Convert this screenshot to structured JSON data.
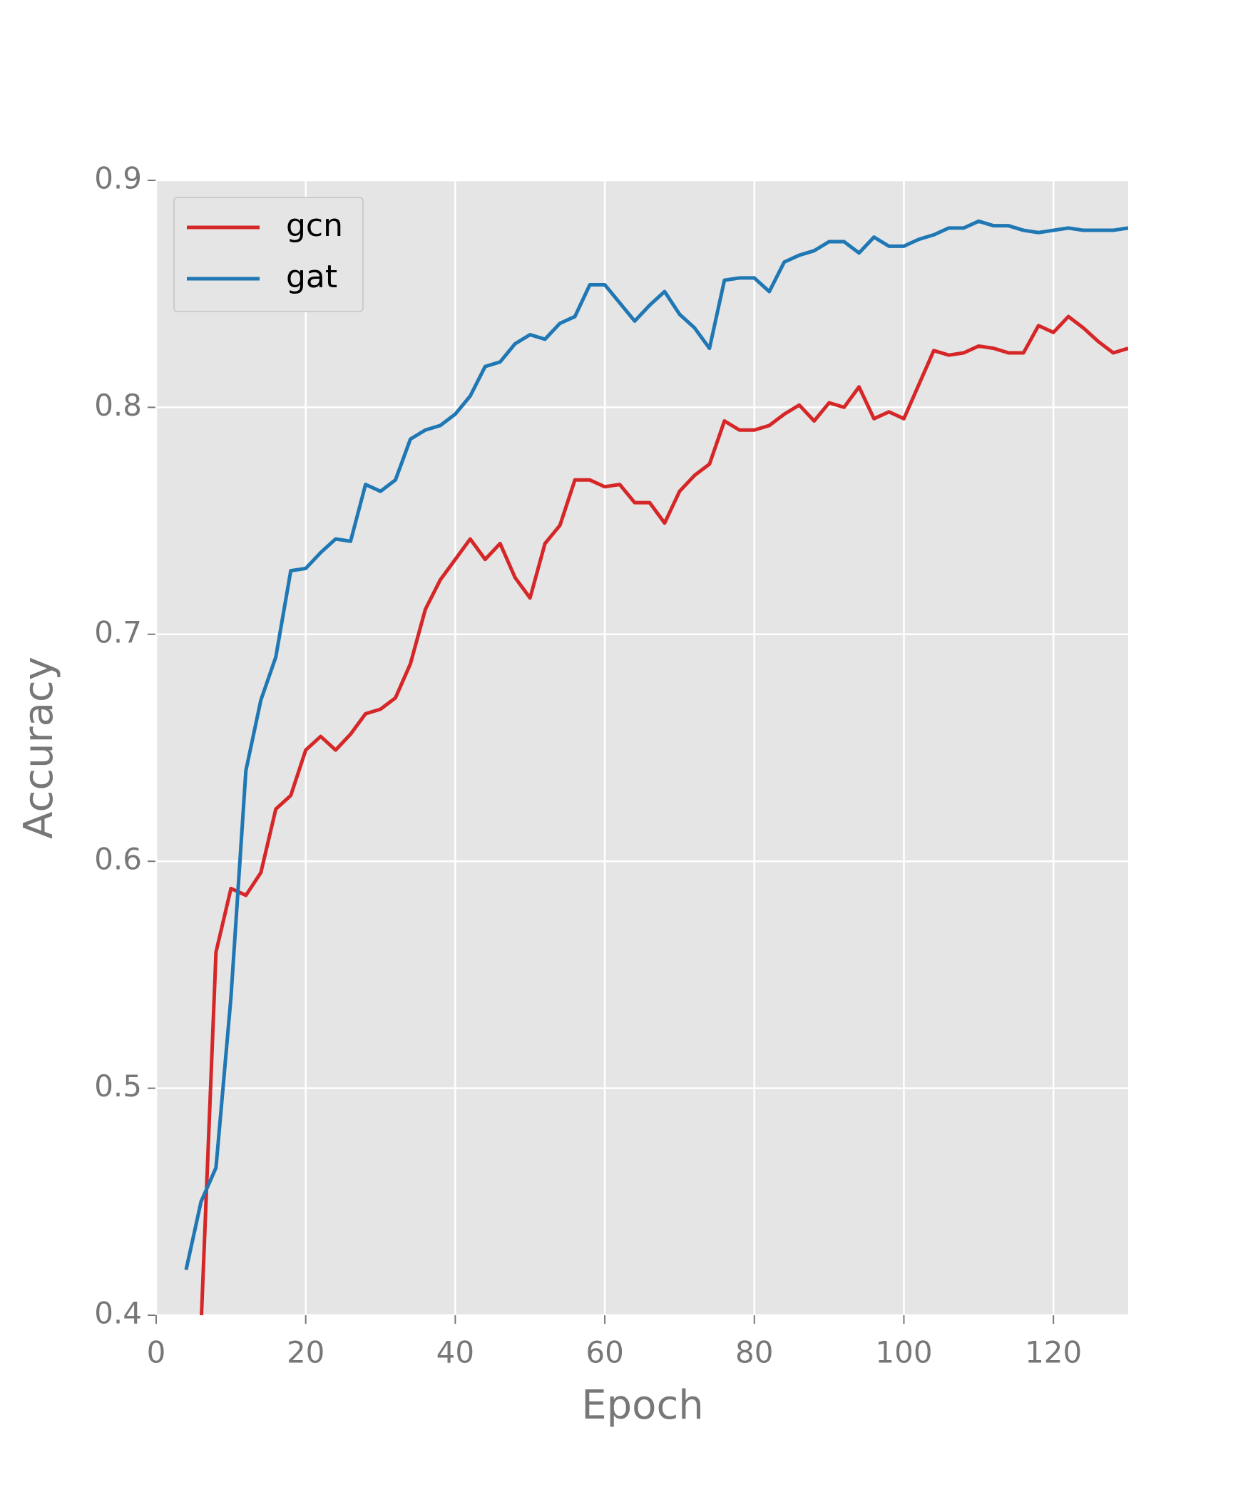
{
  "chart_data": {
    "type": "line",
    "xlabel": "Epoch",
    "ylabel": "Accuracy",
    "x": [
      4,
      6,
      8,
      10,
      12,
      14,
      16,
      18,
      20,
      22,
      24,
      26,
      28,
      30,
      32,
      34,
      36,
      38,
      40,
      42,
      44,
      46,
      48,
      50,
      52,
      54,
      56,
      58,
      60,
      62,
      64,
      66,
      68,
      70,
      72,
      74,
      76,
      78,
      80,
      82,
      84,
      86,
      88,
      90,
      92,
      94,
      96,
      98,
      100,
      102,
      104,
      106,
      108,
      110,
      112,
      114,
      116,
      118,
      120,
      122,
      124,
      126,
      128,
      130
    ],
    "series": [
      {
        "name": "gcn",
        "color": "#d62728",
        "values": [
          null,
          0.395,
          0.56,
          0.588,
          0.585,
          0.595,
          0.623,
          0.629,
          0.649,
          0.655,
          0.649,
          0.656,
          0.665,
          0.667,
          0.672,
          0.687,
          0.711,
          0.724,
          0.733,
          0.742,
          0.733,
          0.74,
          0.725,
          0.716,
          0.74,
          0.748,
          0.768,
          0.768,
          0.765,
          0.766,
          0.758,
          0.758,
          0.749,
          0.763,
          0.77,
          0.775,
          0.794,
          0.79,
          0.79,
          0.792,
          0.797,
          0.801,
          0.794,
          0.802,
          0.8,
          0.809,
          0.795,
          0.798,
          0.795,
          0.81,
          0.825,
          0.823,
          0.824,
          0.827,
          0.826,
          0.824,
          0.824,
          0.836,
          0.833,
          0.84,
          0.835,
          0.829,
          0.824,
          0.826
        ]
      },
      {
        "name": "gat",
        "color": "#1f77b4",
        "values": [
          0.42,
          0.45,
          0.465,
          0.54,
          0.64,
          0.671,
          0.69,
          0.728,
          0.729,
          0.736,
          0.742,
          0.741,
          0.766,
          0.763,
          0.768,
          0.786,
          0.79,
          0.792,
          0.797,
          0.805,
          0.818,
          0.82,
          0.828,
          0.832,
          0.83,
          0.837,
          0.84,
          0.854,
          0.854,
          0.846,
          0.838,
          0.845,
          0.851,
          0.841,
          0.835,
          0.826,
          0.856,
          0.857,
          0.857,
          0.851,
          0.864,
          0.867,
          0.869,
          0.873,
          0.873,
          0.868,
          0.875,
          0.871,
          0.871,
          0.874,
          0.876,
          0.879,
          0.879,
          0.882,
          0.88,
          0.88,
          0.878,
          0.877,
          0.878,
          0.879,
          0.878,
          0.878,
          0.878,
          0.879
        ]
      }
    ],
    "xlim": [
      0,
      130
    ],
    "ylim": [
      0.4,
      0.9
    ],
    "xticks": [
      0,
      20,
      40,
      60,
      80,
      100,
      120
    ],
    "yticks": [
      0.4,
      0.5,
      0.6,
      0.7,
      0.8,
      0.9
    ],
    "grid": true,
    "legend": "upper left"
  }
}
